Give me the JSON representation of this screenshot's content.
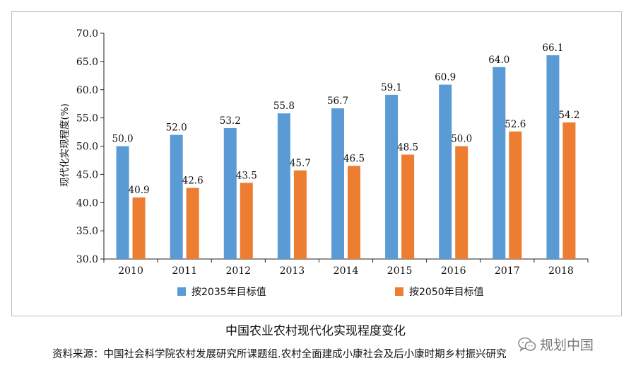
{
  "chart_data": {
    "type": "bar",
    "categories": [
      "2010",
      "2011",
      "2012",
      "2013",
      "2014",
      "2015",
      "2016",
      "2017",
      "2018"
    ],
    "series": [
      {
        "name": "按2035年目标值",
        "color": "#5b9bd5",
        "values": [
          50.0,
          52.0,
          53.2,
          55.8,
          56.7,
          59.1,
          60.9,
          64.0,
          66.1
        ]
      },
      {
        "name": "按2050年目标值",
        "color": "#ed7d31",
        "values": [
          40.9,
          42.6,
          43.5,
          45.7,
          46.5,
          48.5,
          50.0,
          52.6,
          54.2
        ]
      }
    ],
    "ylabel": "现代化实现程度(%)",
    "xlabel": "",
    "ylim": [
      30.0,
      70.0
    ],
    "yticks": [
      30.0,
      35.0,
      40.0,
      45.0,
      50.0,
      55.0,
      60.0,
      65.0,
      70.0
    ],
    "grid": false,
    "legend": "bottom"
  },
  "caption": "中国农业农村现代化实现程度变化",
  "source": "资料来源：中国社会科学院农村发展研究所课题组.农村全面建成小康社会及后小康时期乡村振兴研究",
  "watermark": {
    "icon": "wechat-icon",
    "text": "规划中国"
  }
}
